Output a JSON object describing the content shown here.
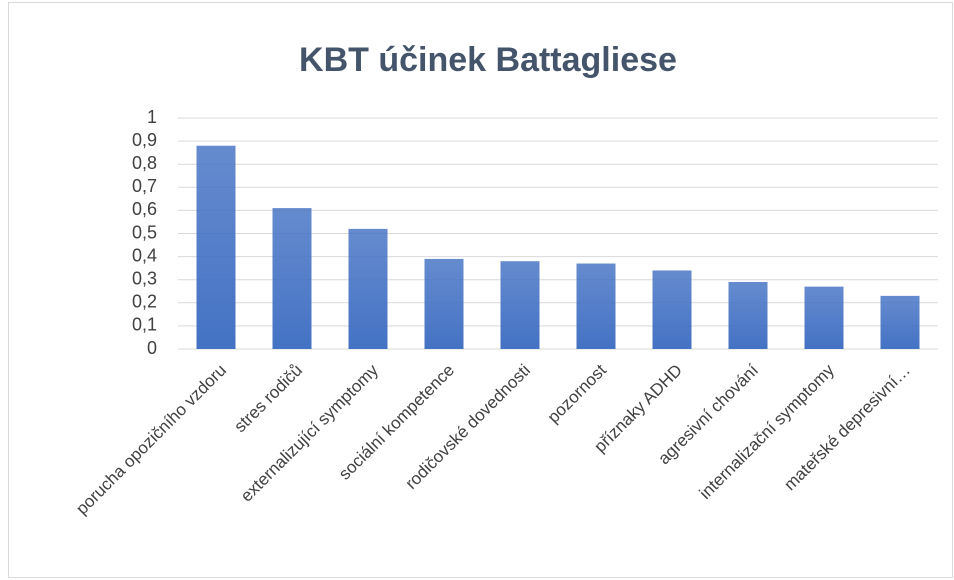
{
  "chart_data": {
    "type": "bar",
    "title": "KBT účinek Battagliese",
    "categories": [
      "porucha opozičního vzdoru",
      "stres rodičů",
      "externalizující symptomy",
      "sociální kompetence",
      "rodičovské dovednosti",
      "pozornost",
      "příznaky ADHD",
      "agresivní chování",
      "internalizační symptomy",
      "mateřské depresivní…"
    ],
    "values": [
      0.88,
      0.61,
      0.52,
      0.39,
      0.38,
      0.37,
      0.34,
      0.29,
      0.27,
      0.23
    ],
    "color": "#4472c4",
    "ylim": [
      0,
      1
    ],
    "yticks": [
      0,
      {
        "value": 0.1,
        "label": "0,1"
      },
      {
        "value": 0.2,
        "label": "0,2"
      },
      {
        "value": 0.3,
        "label": "0,3"
      },
      {
        "value": 0.4,
        "label": "0,4"
      },
      {
        "value": 0.5,
        "label": "0,5"
      },
      {
        "value": 0.6,
        "label": "0,6"
      },
      {
        "value": 0.7,
        "label": "0,7"
      },
      {
        "value": 0.8,
        "label": "0,8"
      },
      {
        "value": 0.9,
        "label": "0,9"
      },
      1
    ],
    "grid": true
  }
}
